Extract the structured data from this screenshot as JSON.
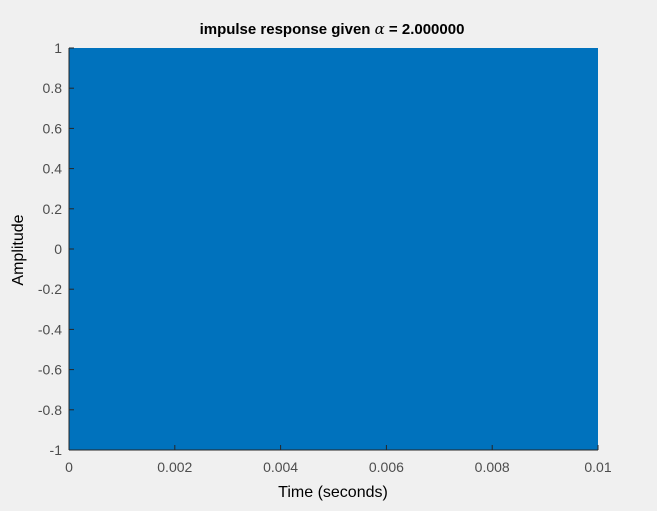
{
  "chart_data": {
    "type": "area",
    "title_prefix": "impulse response given ",
    "title_symbol": "α",
    "title_suffix": "  = 2.000000",
    "xlabel": "Time (seconds)",
    "ylabel": "Amplitude",
    "xlim": [
      0,
      0.01
    ],
    "ylim": [
      -1,
      1
    ],
    "xticks": [
      "0",
      "0.002",
      "0.004",
      "0.006",
      "0.008",
      "0.01"
    ],
    "yticks": [
      "-1",
      "-0.8",
      "-0.6",
      "-0.4",
      "-0.2",
      "0",
      "0.2",
      "0.4",
      "0.6",
      "0.8",
      "1"
    ],
    "series_color": "#0072bd",
    "grid": false,
    "note_on_series": "dense oscillation between -1 and 1 filling the full axes",
    "series": [
      {
        "x_start": 0,
        "x_end": 0.01,
        "y_min": -1,
        "y_max": 1
      }
    ]
  },
  "figure": {
    "background": "#f0f0f0",
    "tick_color": "#4d4d4d",
    "label_color": "#262626"
  }
}
